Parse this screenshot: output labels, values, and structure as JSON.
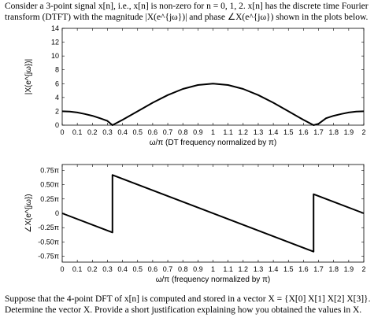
{
  "text": {
    "intro_line1": "Consider a 3-point signal x[n], i.e., x[n] is non-zero for n = 0, 1, 2. x[n] has the discrete time Fourier",
    "intro_line2": "transform (DTFT) with the magnitude |X(e^{jω})| and phase ∠X(e^{jω}) shown in the plots below.",
    "outro_line1": "Suppose that the 4-point DFT of x[n] is computed and stored in a vector X = {X[0]  X[1]  X[2]  X[3]}.",
    "outro_line2": "Determine the vector X. Provide a short justification explaining how you obtained the values in X."
  },
  "chart_data": [
    {
      "type": "line",
      "xlabel": "ω/π (DT frequency normalized by π)",
      "ylabel": "|X(e^{jω})|",
      "xlim": [
        0,
        2
      ],
      "ylim": [
        0,
        14
      ],
      "xticks": [
        "0",
        "0.1",
        "0.2",
        "0.3",
        "0.4",
        "0.5",
        "0.6",
        "0.7",
        "0.8",
        "0.9",
        "1",
        "1.1",
        "1.2",
        "1.3",
        "1.4",
        "1.5",
        "1.6",
        "1.7",
        "1.8",
        "1.9",
        "2"
      ],
      "yticks": [
        "0",
        "2",
        "4",
        "6",
        "8",
        "10",
        "12",
        "14"
      ],
      "grid": false,
      "series": [
        {
          "x": [
            0,
            0.05,
            0.1,
            0.15,
            0.2,
            0.25,
            0.3,
            0.333,
            0.4,
            0.5,
            0.6,
            0.7,
            0.8,
            0.9,
            1.0,
            1.1,
            1.2,
            1.3,
            1.4,
            1.5,
            1.6,
            1.667,
            1.7,
            1.75,
            1.8,
            1.85,
            1.9,
            1.95,
            2.0
          ],
          "y": [
            2.0,
            1.96,
            1.83,
            1.62,
            1.35,
            1.0,
            0.62,
            0.0,
            0.76,
            2.0,
            3.24,
            4.35,
            5.24,
            5.8,
            6.0,
            5.8,
            5.24,
            4.35,
            3.24,
            2.0,
            0.76,
            0.0,
            0.2,
            1.0,
            1.35,
            1.62,
            1.83,
            1.96,
            2.0
          ]
        }
      ]
    },
    {
      "type": "line",
      "xlabel": "ω/π (frequency normalized by π)",
      "ylabel": "∠X(e^{jω})",
      "xlim": [
        0,
        2
      ],
      "ylim": [
        -0.85,
        0.85
      ],
      "xticks": [
        "0",
        "0.1",
        "0.2",
        "0.3",
        "0.4",
        "0.5",
        "0.6",
        "0.7",
        "0.8",
        "0.9",
        "1",
        "1.1",
        "1.2",
        "1.3",
        "1.4",
        "1.5",
        "1.6",
        "1.7",
        "1.8",
        "1.9",
        "2"
      ],
      "yticks": [
        "-0.75π",
        "-0.50π",
        "-0.25π",
        "0",
        "0.25π",
        "0.50π",
        "0.75π"
      ],
      "grid": false,
      "series": [
        {
          "x": [
            0,
            0.333,
            0.333,
            1.667,
            1.667,
            2.0
          ],
          "y": [
            0,
            -0.333,
            0.667,
            -0.667,
            0.333,
            0
          ]
        }
      ]
    }
  ]
}
